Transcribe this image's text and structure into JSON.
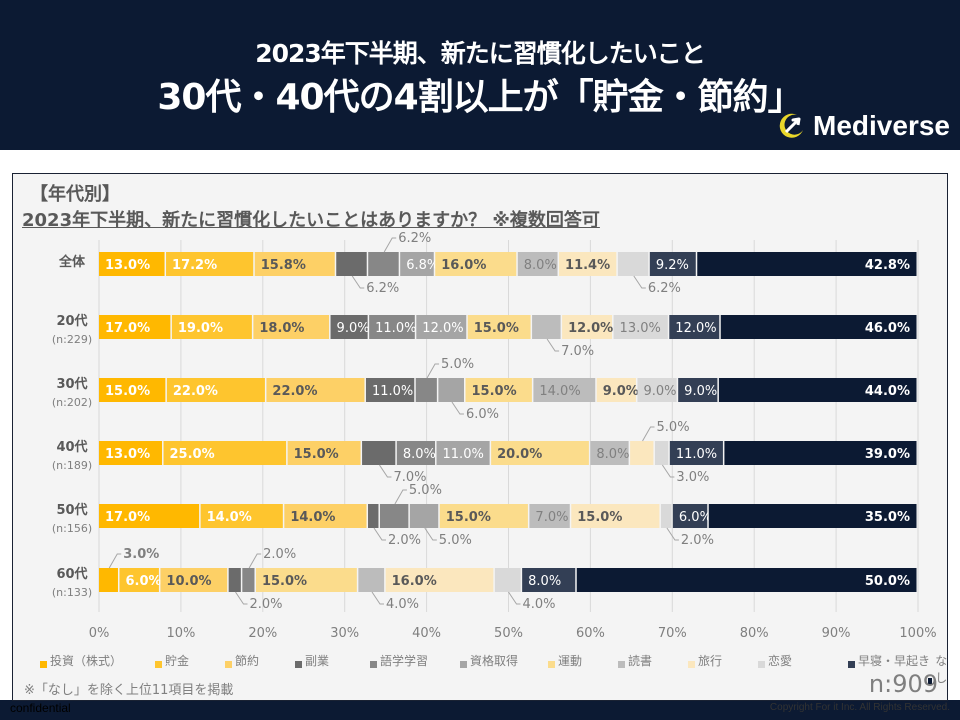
{
  "header": {
    "title_line1": "2023年下半期、新たに習慣化したいこと",
    "title_line2": "30代・40代の4割以上が「貯金・節約」",
    "brand": "Mediverse"
  },
  "subtitle": {
    "line1": "【年代別】",
    "line2": "2023年下半期、新たに習慣化したいことはありますか？ ※複数回答可"
  },
  "chart_data": {
    "type": "bar",
    "orientation": "horizontal",
    "stacked": true,
    "normalized_to_100": true,
    "title": "2023年下半期、新たに習慣化したいことはありますか？ ※複数回答可",
    "xlabel": "",
    "ylabel": "",
    "xlim": [
      0,
      100
    ],
    "x_ticks": [
      "0%",
      "10%",
      "20%",
      "30%",
      "40%",
      "50%",
      "60%",
      "70%",
      "80%",
      "90%",
      "100%"
    ],
    "grid": true,
    "legend_position": "bottom",
    "categories": [
      {
        "label": "全体",
        "n": ""
      },
      {
        "label": "20代",
        "n": "(n:229)"
      },
      {
        "label": "30代",
        "n": "(n:202)"
      },
      {
        "label": "40代",
        "n": "(n:189)"
      },
      {
        "label": "50代",
        "n": "(n:156)"
      },
      {
        "label": "60代",
        "n": "(n:133)"
      }
    ],
    "series": [
      {
        "name": "投資（株式）",
        "color": "#ffb800",
        "label_color": "#ffffff",
        "values": [
          13.0,
          17.0,
          15.0,
          13.0,
          17.0,
          3.0
        ]
      },
      {
        "name": "貯金",
        "color": "#fec52e",
        "label_color": "#ffffff",
        "values": [
          17.2,
          19.0,
          22.0,
          25.0,
          14.0,
          6.0
        ]
      },
      {
        "name": "節約",
        "color": "#fdd066",
        "label_color": "#595959",
        "values": [
          15.8,
          18.0,
          22.0,
          15.0,
          14.0,
          10.0
        ]
      },
      {
        "name": "副業",
        "color": "#6b6b6b",
        "label_color": "#ffffff",
        "values": [
          6.2,
          9.0,
          11.0,
          7.0,
          2.0,
          2.0
        ]
      },
      {
        "name": "語学学習",
        "color": "#878787",
        "label_color": "#ffffff",
        "values": [
          6.2,
          11.0,
          5.0,
          8.0,
          5.0,
          2.0
        ]
      },
      {
        "name": "資格取得",
        "color": "#a5a5a5",
        "label_color": "#ffffff",
        "values": [
          6.8,
          12.0,
          6.0,
          11.0,
          5.0,
          0
        ]
      },
      {
        "name": "運動",
        "color": "#fbdc8c",
        "label_color": "#595959",
        "values": [
          16.0,
          15.0,
          15.0,
          20.0,
          15.0,
          15.0
        ]
      },
      {
        "name": "読書",
        "color": "#bcbcbc",
        "label_color": "#808080",
        "values": [
          8.0,
          7.0,
          14.0,
          8.0,
          7.0,
          4.0
        ]
      },
      {
        "name": "旅行",
        "color": "#fbe7be",
        "label_color": "#595959",
        "values": [
          11.4,
          12.0,
          9.0,
          5.0,
          15.0,
          16.0
        ]
      },
      {
        "name": "恋愛",
        "color": "#d9d9d9",
        "label_color": "#808080",
        "values": [
          6.2,
          13.0,
          9.0,
          3.0,
          2.0,
          4.0
        ]
      },
      {
        "name": "早寝・早起き",
        "color": "#333f55",
        "label_color": "#ffffff",
        "values": [
          9.2,
          12.0,
          9.0,
          11.0,
          6.0,
          8.0
        ]
      },
      {
        "name": "なし",
        "color": "#0c1a33",
        "label_color": "#ffffff",
        "values": [
          42.8,
          46.0,
          44.0,
          39.0,
          35.0,
          50.0
        ]
      }
    ]
  },
  "footnote": "※「なし」を除く上位11項目を掲載",
  "n_total": "n:909",
  "footer": {
    "confidential": "confidential",
    "copyright": "Copyright For it Inc. All Rights Reserved."
  }
}
